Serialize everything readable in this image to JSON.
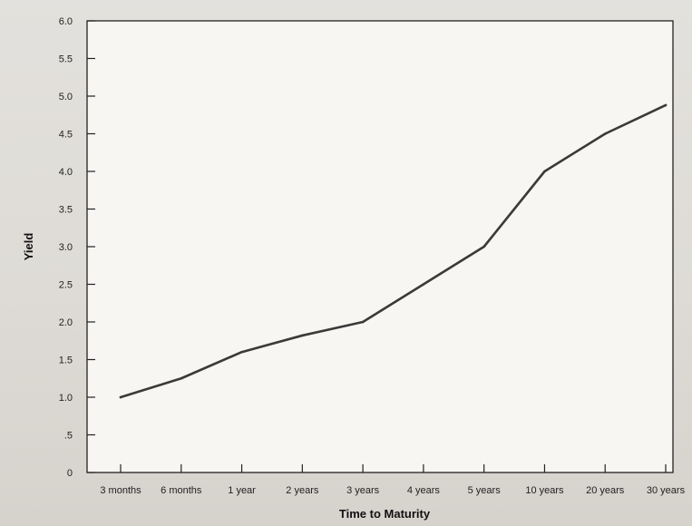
{
  "chart_data": {
    "type": "line",
    "title": "",
    "xlabel": "Time to Maturity",
    "ylabel": "Yield",
    "categories": [
      "3 months",
      "6 months",
      "1 year",
      "2 years",
      "3 years",
      "4 years",
      "5 years",
      "10 years",
      "20 years",
      "30 years"
    ],
    "y_tick_labels": [
      "0",
      ".5",
      "1.0",
      "1.5",
      "2.0",
      "2.5",
      "3.0",
      "3.5",
      "4.0",
      "4.5",
      "5.0",
      "5.5",
      "6.0"
    ],
    "ylim": [
      0,
      6.0
    ],
    "grid": false,
    "legend": "none",
    "series": [
      {
        "values": [
          1.0,
          1.25,
          1.6,
          1.82,
          2.0,
          2.5,
          3.0,
          4.0,
          4.5,
          4.88
        ],
        "color": "#3a3a3a"
      }
    ]
  }
}
